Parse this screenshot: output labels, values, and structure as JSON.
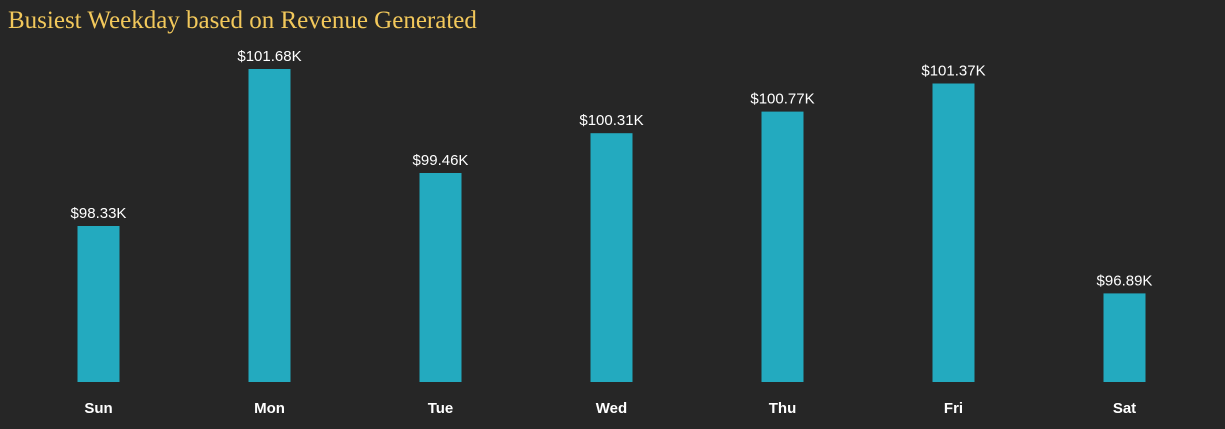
{
  "colors": {
    "background": "#262626",
    "bar": "#23AABF",
    "title": "#F2C85B",
    "label": "#FFFFFF"
  },
  "chart_data": {
    "type": "bar",
    "title": "Busiest Weekday based on Revenue Generated",
    "xlabel": "",
    "ylabel": "",
    "categories": [
      "Sun",
      "Mon",
      "Tue",
      "Wed",
      "Thu",
      "Fri",
      "Sat"
    ],
    "values": [
      98.33,
      101.68,
      99.46,
      100.31,
      100.77,
      101.37,
      96.89
    ],
    "value_labels": [
      "$98.33K",
      "$101.68K",
      "$99.46K",
      "$100.31K",
      "$100.77K",
      "$101.37K",
      "$96.89K"
    ],
    "ylim": [
      95,
      101.68
    ],
    "grid": false,
    "legend": "none"
  }
}
